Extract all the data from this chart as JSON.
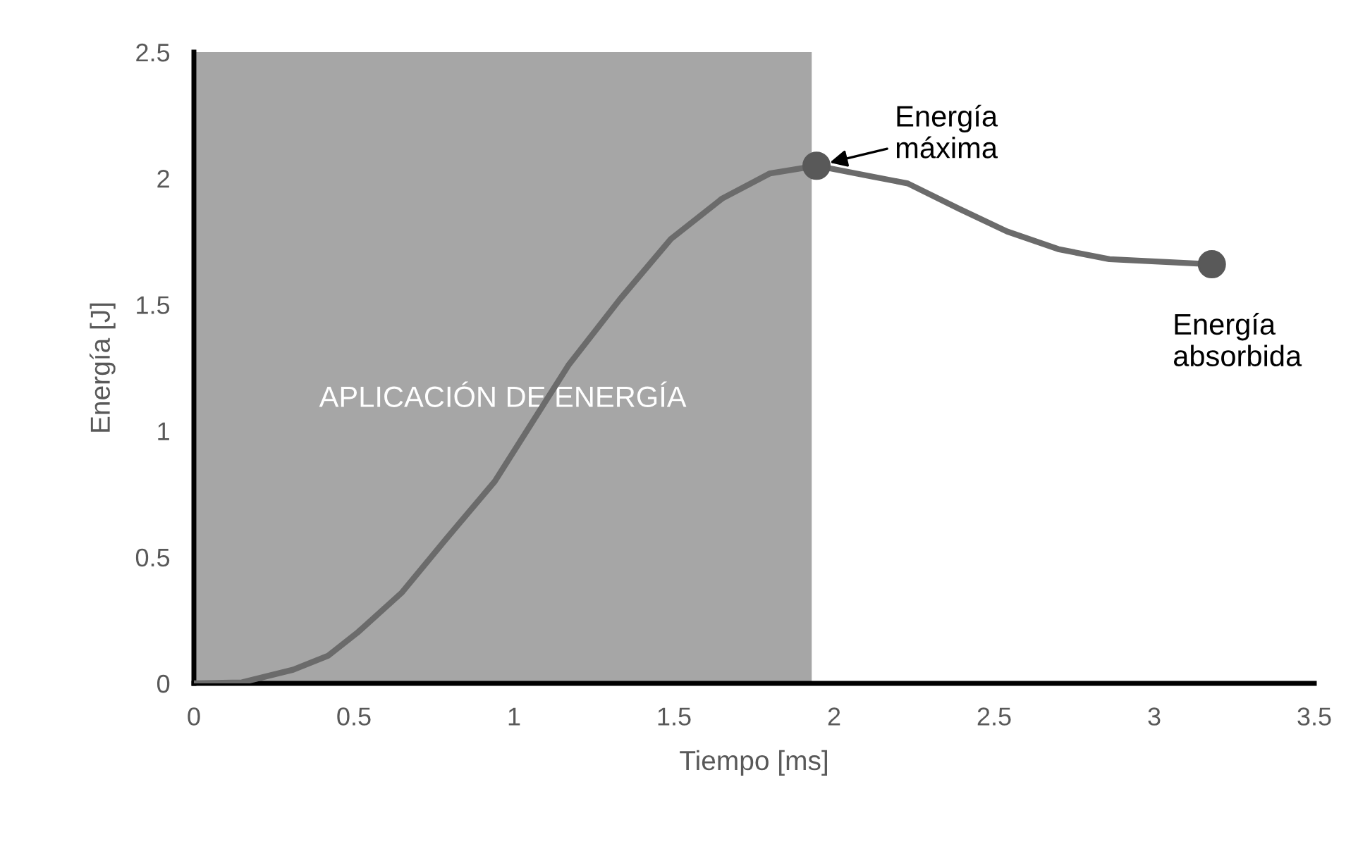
{
  "chart_data": {
    "type": "line",
    "xlabel": "Tiempo [ms]",
    "ylabel": "Energía [J]",
    "xlim": [
      0,
      3.5
    ],
    "xticks": [
      0,
      0.5,
      1,
      1.5,
      2,
      2.5,
      3,
      3.5
    ],
    "ylim": [
      0,
      2.5
    ],
    "yticks": [
      0,
      0.5,
      1,
      1.5,
      2,
      2.5
    ],
    "grid": false,
    "legend": false,
    "series": [
      {
        "color": "#6b6b6b",
        "marker": "none",
        "x": [
          0,
          0.15,
          0.31,
          0.42,
          0.51,
          0.65,
          0.78,
          0.94,
          1.06,
          1.17,
          1.33,
          1.49,
          1.65,
          1.8,
          1.945,
          2.23,
          2.39,
          2.54,
          2.7,
          2.86,
          3.18
        ],
        "values": [
          0,
          0.004,
          0.054,
          0.11,
          0.2,
          0.36,
          0.56,
          0.8,
          1.04,
          1.26,
          1.52,
          1.76,
          1.92,
          2.02,
          2.05,
          1.98,
          1.88,
          1.79,
          1.72,
          1.68,
          1.66
        ]
      },
      {
        "type": "scatter",
        "color": "#595959",
        "marker": "circle",
        "x": [
          1.945,
          3.18
        ],
        "values": [
          2.05,
          1.66
        ]
      }
    ],
    "bands": [
      {
        "axis": "x",
        "from": 0,
        "to": 1.93,
        "label": "APLICACIÓN DE ENERGÍA",
        "color": "#a6a6a6"
      }
    ],
    "annotations": [
      {
        "text": "Energía\nmáxima",
        "x": 1.945,
        "y": 2.05
      },
      {
        "text": "Energía\nabsorbida",
        "x": 3.18,
        "y": 1.66
      }
    ]
  }
}
